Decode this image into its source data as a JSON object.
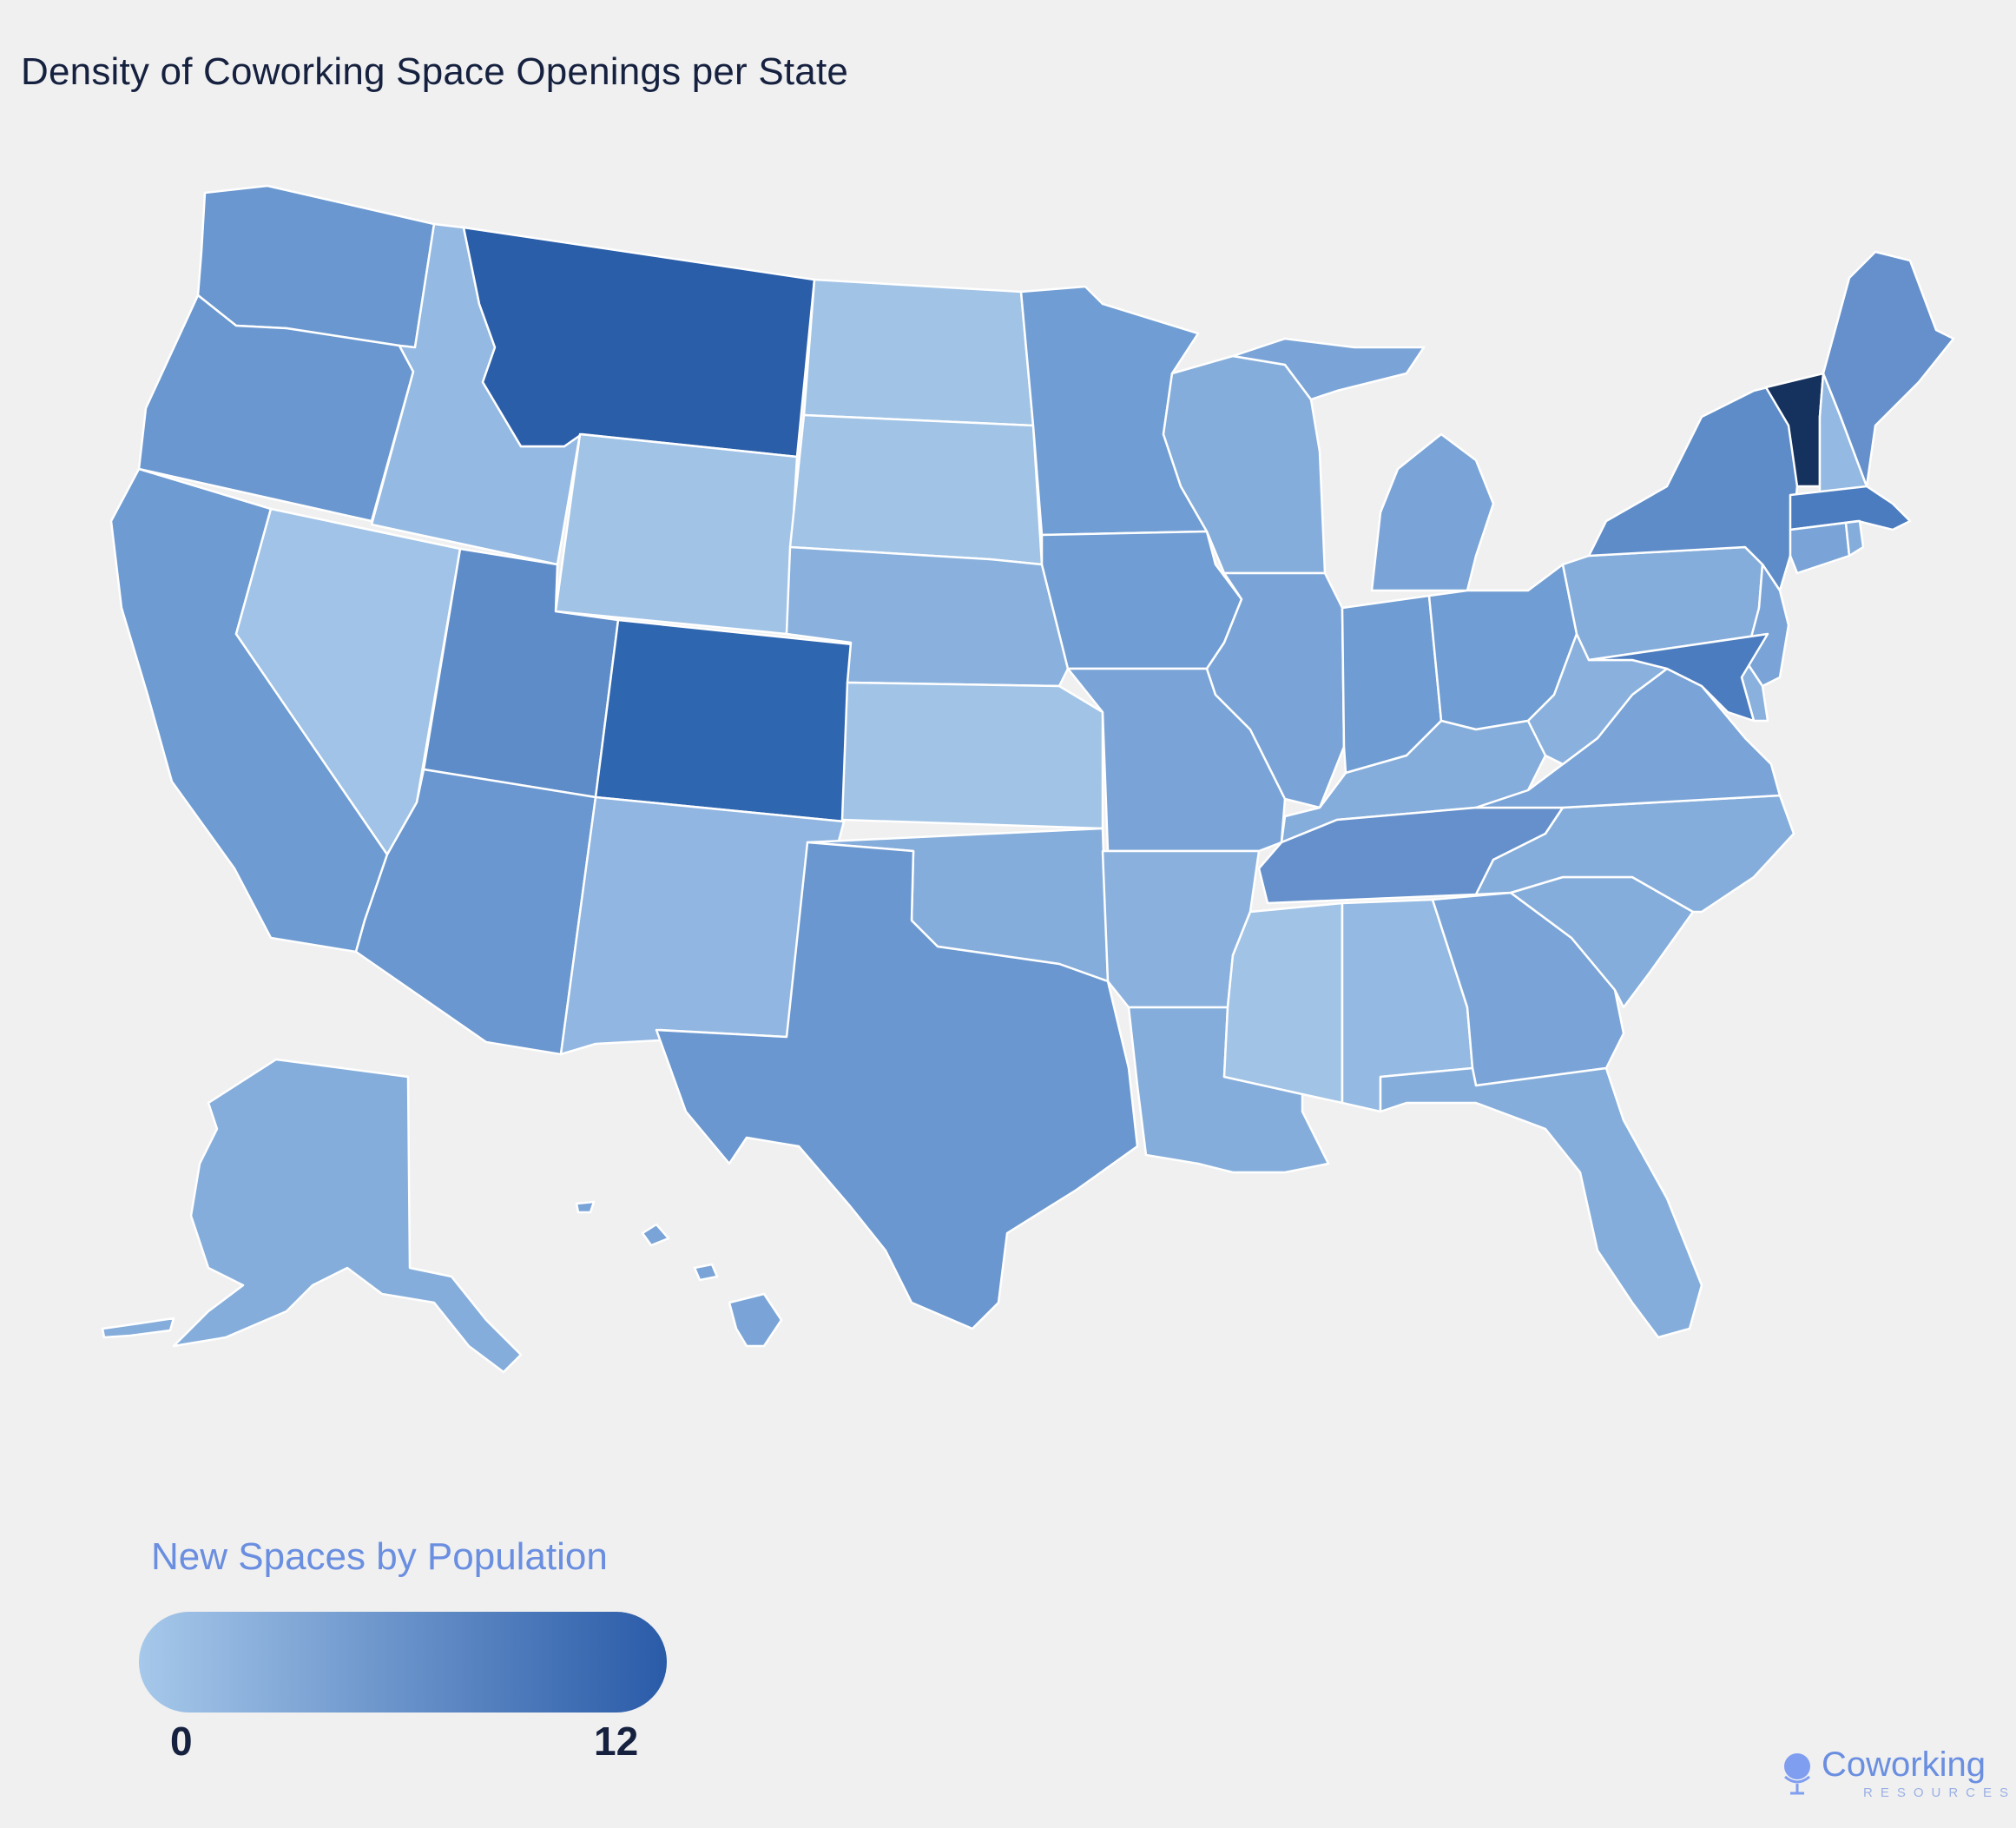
{
  "title": "Density of Coworking Space Openings per State",
  "legend": {
    "title": "New Spaces by Population",
    "min_label": "0",
    "max_label": "12",
    "min_value": 0,
    "max_value": 12,
    "color_min": "#a6c8ea",
    "color_max": "#2a5ba8"
  },
  "highlight_color": "#15325e",
  "brand": {
    "name": "Coworking",
    "sub": "RESOURCES",
    "icon": "globe-icon"
  },
  "background": "#f0f0f0",
  "chart_data": {
    "type": "choropleth",
    "metric": "New Spaces by Population",
    "scale_range": [
      0,
      12
    ],
    "regions": [
      {
        "state": "Washington",
        "color": "#6a97cf"
      },
      {
        "state": "Oregon",
        "color": "#6a97cf"
      },
      {
        "state": "California",
        "color": "#6e9bd2"
      },
      {
        "state": "Idaho",
        "color": "#94b9e2"
      },
      {
        "state": "Nevada",
        "color": "#a0c3e7"
      },
      {
        "state": "Montana",
        "color": "#2a5ea8"
      },
      {
        "state": "Wyoming",
        "color": "#a1c3e6"
      },
      {
        "state": "Utah",
        "color": "#5e8cc8"
      },
      {
        "state": "Colorado",
        "color": "#2f66b0"
      },
      {
        "state": "Arizona",
        "color": "#6a97cf"
      },
      {
        "state": "New Mexico",
        "color": "#91b6e1"
      },
      {
        "state": "North Dakota",
        "color": "#a1c3e6"
      },
      {
        "state": "South Dakota",
        "color": "#a1c3e6"
      },
      {
        "state": "Nebraska",
        "color": "#8ab1dd"
      },
      {
        "state": "Kansas",
        "color": "#a1c3e6"
      },
      {
        "state": "Oklahoma",
        "color": "#85addb"
      },
      {
        "state": "Texas",
        "color": "#6a97cf"
      },
      {
        "state": "Minnesota",
        "color": "#709dd3"
      },
      {
        "state": "Iowa",
        "color": "#709dd3"
      },
      {
        "state": "Missouri",
        "color": "#7aa4d7"
      },
      {
        "state": "Arkansas",
        "color": "#8ab1dd"
      },
      {
        "state": "Louisiana",
        "color": "#85addb"
      },
      {
        "state": "Wisconsin",
        "color": "#85addb"
      },
      {
        "state": "Illinois",
        "color": "#7aa4d7"
      },
      {
        "state": "Michigan",
        "color": "#7aa4d7"
      },
      {
        "state": "Indiana",
        "color": "#6f9cd2"
      },
      {
        "state": "Ohio",
        "color": "#709dd3"
      },
      {
        "state": "Kentucky",
        "color": "#85addb"
      },
      {
        "state": "Tennessee",
        "color": "#6590cb"
      },
      {
        "state": "Mississippi",
        "color": "#a1c3e6"
      },
      {
        "state": "Alabama",
        "color": "#94b9e2"
      },
      {
        "state": "Georgia",
        "color": "#7aa4d7"
      },
      {
        "state": "Florida",
        "color": "#85addb"
      },
      {
        "state": "South Carolina",
        "color": "#85addb"
      },
      {
        "state": "North Carolina",
        "color": "#85addb"
      },
      {
        "state": "Virginia",
        "color": "#7aa4d7"
      },
      {
        "state": "West Virginia",
        "color": "#8ab1dd"
      },
      {
        "state": "Pennsylvania",
        "color": "#85addb"
      },
      {
        "state": "New York",
        "color": "#5e8cc8"
      },
      {
        "state": "Vermont",
        "color": "#15325e"
      },
      {
        "state": "New Hampshire",
        "color": "#94b9e2"
      },
      {
        "state": "Maine",
        "color": "#6590cb"
      },
      {
        "state": "Massachusetts",
        "color": "#4b7cc0"
      },
      {
        "state": "Connecticut",
        "color": "#7aa4d7"
      },
      {
        "state": "Rhode Island",
        "color": "#85addb"
      },
      {
        "state": "New Jersey",
        "color": "#7aa4d7"
      },
      {
        "state": "Delaware",
        "color": "#8ab1dd"
      },
      {
        "state": "Maryland",
        "color": "#4b7cc0"
      },
      {
        "state": "Alaska",
        "color": "#85addb"
      },
      {
        "state": "Hawaii",
        "color": "#7aa4d7"
      }
    ]
  }
}
